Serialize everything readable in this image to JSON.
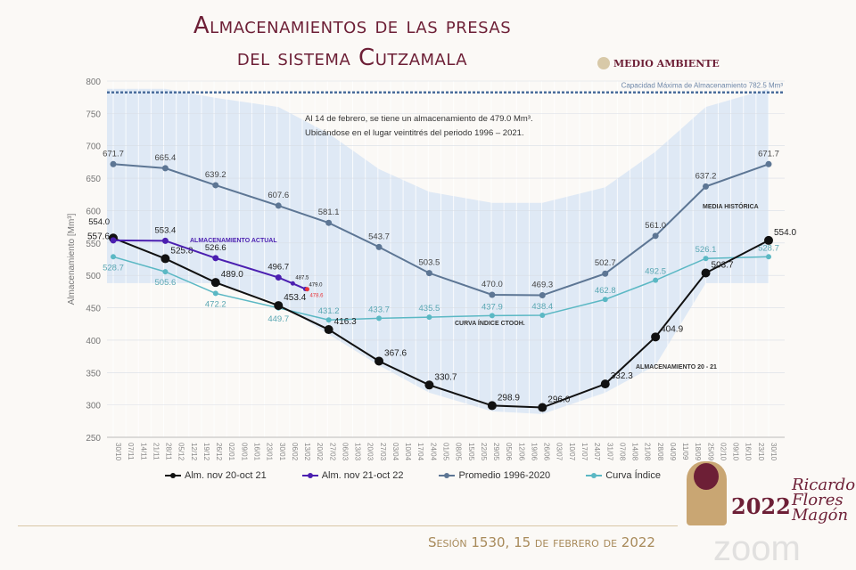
{
  "header": {
    "title_line1": "Almacenamientos de las presas",
    "title_line2": "del sistema Cutzamala",
    "logo_text": "MEDIO AMBIENTE"
  },
  "footer": {
    "session": "Sesión 1530, 15 de febrero de 2022",
    "badge_year": "2022",
    "badge_name": "Ricardo Flores Magón",
    "watermark": "zoom"
  },
  "chart_data": {
    "type": "line",
    "title": "Almacenamientos de las presas del sistema Cutzamala",
    "ylabel": "Almacenamiento [Mm³]",
    "xlabel": "",
    "ylim": [
      250,
      800
    ],
    "yticks": [
      250,
      300,
      350,
      400,
      450,
      500,
      550,
      600,
      650,
      700,
      750,
      800
    ],
    "grid": true,
    "legend_position": "bottom",
    "categories": [
      "30/10",
      "07/11",
      "14/11",
      "21/11",
      "28/11",
      "05/12",
      "12/12",
      "19/12",
      "26/12",
      "02/01",
      "09/01",
      "16/01",
      "23/01",
      "30/01",
      "06/02",
      "13/02",
      "20/02",
      "27/02",
      "06/03",
      "13/03",
      "20/03",
      "27/03",
      "03/04",
      "10/04",
      "17/04",
      "24/04",
      "01/05",
      "08/05",
      "15/05",
      "22/05",
      "29/05",
      "05/06",
      "12/06",
      "19/06",
      "26/06",
      "03/07",
      "10/07",
      "17/07",
      "24/07",
      "31/07",
      "07/08",
      "14/08",
      "21/08",
      "28/08",
      "04/09",
      "11/09",
      "18/09",
      "25/09",
      "02/10",
      "09/10",
      "16/10",
      "23/10",
      "30/10"
    ],
    "capacity": {
      "value": 782.5,
      "label": "Capacidad Máxima de Almacenamiento 782.5 Mm³"
    },
    "note_line1": "Al 14 de febrero, se tiene un almacenamiento de 479.0 Mm³.",
    "note_line2": "Ubicándose en el lugar veintitrés del periodo 1996 – 2021.",
    "historical_range": {
      "x": [
        "30/10",
        "28/11",
        "26/12",
        "30/01",
        "27/02",
        "27/03",
        "24/04",
        "29/05",
        "26/06",
        "31/07",
        "28/08",
        "25/09",
        "30/10"
      ],
      "upper": [
        788,
        788,
        774,
        760,
        719,
        664,
        629,
        612,
        612,
        636,
        691,
        760,
        788
      ],
      "lower": [
        488,
        488,
        488,
        457,
        409,
        361,
        319,
        290,
        286,
        319,
        361,
        488,
        488
      ],
      "color": "#dfe9f5"
    },
    "series": [
      {
        "name": "Alm. nov 20-oct 21",
        "annotation": "ALMACENAMIENTO 20 - 21",
        "color": "#111111",
        "x": [
          "30/10",
          "28/11",
          "26/12",
          "30/01",
          "27/02",
          "27/03",
          "24/04",
          "29/05",
          "26/06",
          "31/07",
          "28/08",
          "25/09",
          "30/10"
        ],
        "values": [
          557.6,
          525.8,
          489.0,
          453.4,
          416.3,
          367.6,
          330.7,
          298.9,
          296.0,
          332.3,
          404.9,
          503.7,
          554.0
        ]
      },
      {
        "name": "Alm. nov 21-oct 22",
        "annotation": "ALMACENAMIENTO ACTUAL",
        "color": "#4b1fb0",
        "x": [
          "30/10",
          "28/11",
          "26/12",
          "30/01",
          "07/02",
          "14/02"
        ],
        "values": [
          554.0,
          553.4,
          526.6,
          496.7,
          487.5,
          479.0
        ]
      },
      {
        "name": "Promedio 1996-2020",
        "annotation": "MEDIA HISTÓRICA",
        "color": "#5d7694",
        "x": [
          "30/10",
          "28/11",
          "26/12",
          "30/01",
          "27/02",
          "27/03",
          "24/04",
          "29/05",
          "26/06",
          "31/07",
          "28/08",
          "25/09",
          "30/10"
        ],
        "values": [
          671.7,
          665.4,
          639.2,
          607.6,
          581.1,
          543.7,
          503.5,
          470.0,
          469.3,
          502.7,
          561.0,
          637.2,
          671.7
        ]
      },
      {
        "name": "Curva Índice",
        "annotation": "CURVA ÍNDICE CTOOH.",
        "color": "#5bb8c4",
        "x": [
          "30/10",
          "28/11",
          "26/12",
          "30/01",
          "27/02",
          "27/03",
          "24/04",
          "29/05",
          "26/06",
          "31/07",
          "28/08",
          "25/09",
          "30/10"
        ],
        "values": [
          528.7,
          505.6,
          472.2,
          449.7,
          431.2,
          433.7,
          435.5,
          437.9,
          438.4,
          462.8,
          492.5,
          526.1,
          528.7
        ]
      }
    ],
    "extra_point": {
      "x": "15/02",
      "value": 478.6,
      "color": "#e8353a"
    }
  }
}
